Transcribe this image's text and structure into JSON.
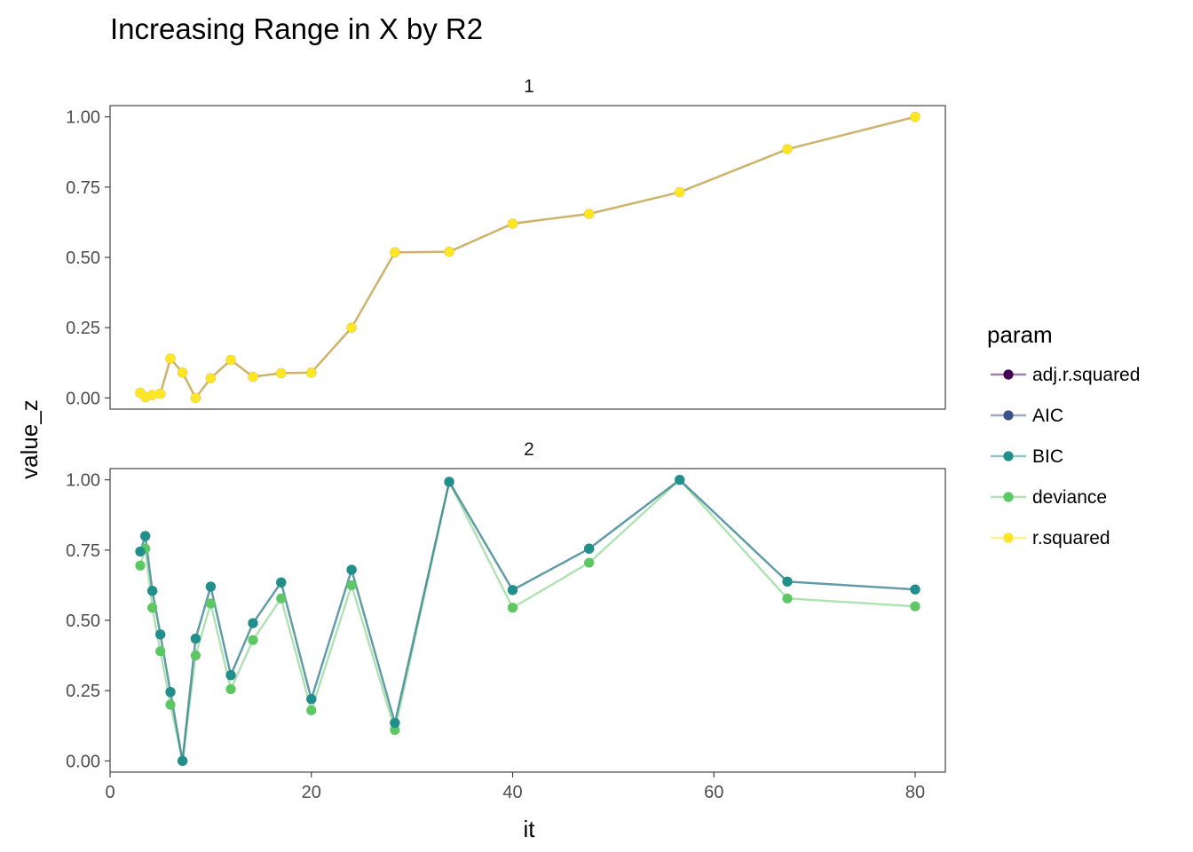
{
  "chart_data": {
    "type": "line",
    "title": "Increasing Range in X by R2",
    "xlabel": "it",
    "ylabel": "value_z",
    "xlim": [
      0,
      83
    ],
    "ylim": [
      -0.04,
      1.04
    ],
    "x_ticks": [
      "0",
      "20",
      "40",
      "60",
      "80"
    ],
    "y_ticks": [
      "0.00",
      "0.25",
      "0.50",
      "0.75",
      "1.00"
    ],
    "grid": false,
    "legend": {
      "title": "param",
      "placement": "right",
      "entries": [
        {
          "label": "adj.r.squared",
          "color": "#440154"
        },
        {
          "label": "AIC",
          "color": "#3b528b"
        },
        {
          "label": "BIC",
          "color": "#21908c"
        },
        {
          "label": "deviance",
          "color": "#5dc863"
        },
        {
          "label": "r.squared",
          "color": "#fde725"
        }
      ]
    },
    "panels": [
      {
        "label": "1",
        "series": [
          {
            "name": "adj.r.squared",
            "color": "#440154",
            "x": [
              3.0,
              3.5,
              4.2,
              5.0,
              6.0,
              7.2,
              8.5,
              10.0,
              12.0,
              14.2,
              17.0,
              20.0,
              24.0,
              28.3,
              33.7,
              40.0,
              47.6,
              56.6,
              67.3,
              80.0
            ],
            "y": [
              0.018,
              0.003,
              0.01,
              0.015,
              0.14,
              0.09,
              0.0,
              0.07,
              0.135,
              0.075,
              0.088,
              0.09,
              0.25,
              0.518,
              0.52,
              0.62,
              0.655,
              0.732,
              0.885,
              1.0
            ]
          },
          {
            "name": "r.squared",
            "color": "#fde725",
            "x": [
              3.0,
              3.5,
              4.2,
              5.0,
              6.0,
              7.2,
              8.5,
              10.0,
              12.0,
              14.2,
              17.0,
              20.0,
              24.0,
              28.3,
              33.7,
              40.0,
              47.6,
              56.6,
              67.3,
              80.0
            ],
            "y": [
              0.018,
              0.003,
              0.01,
              0.015,
              0.14,
              0.09,
              0.0,
              0.07,
              0.135,
              0.075,
              0.088,
              0.09,
              0.25,
              0.518,
              0.52,
              0.62,
              0.655,
              0.732,
              0.885,
              1.0
            ]
          }
        ]
      },
      {
        "label": "2",
        "series": [
          {
            "name": "deviance",
            "color": "#5dc863",
            "x": [
              3.0,
              3.5,
              4.2,
              5.0,
              6.0,
              7.2,
              8.5,
              10.0,
              12.0,
              14.2,
              17.0,
              20.0,
              24.0,
              28.3,
              33.7,
              40.0,
              47.6,
              56.6,
              67.3,
              80.0
            ],
            "y": [
              0.695,
              0.755,
              0.545,
              0.39,
              0.2,
              0.0,
              0.375,
              0.56,
              0.255,
              0.43,
              0.578,
              0.18,
              0.625,
              0.11,
              0.993,
              0.545,
              0.705,
              1.0,
              0.578,
              0.55
            ]
          },
          {
            "name": "AIC",
            "color": "#3b528b",
            "x": [
              3.0,
              3.5,
              4.2,
              5.0,
              6.0,
              7.2,
              8.5,
              10.0,
              12.0,
              14.2,
              17.0,
              20.0,
              24.0,
              28.3,
              33.7,
              40.0,
              47.6,
              56.6,
              67.3,
              80.0
            ],
            "y": [
              0.745,
              0.8,
              0.605,
              0.45,
              0.245,
              0.0,
              0.435,
              0.62,
              0.305,
              0.49,
              0.635,
              0.22,
              0.68,
              0.135,
              0.993,
              0.608,
              0.755,
              1.0,
              0.638,
              0.61
            ]
          },
          {
            "name": "BIC",
            "color": "#21908c",
            "x": [
              3.0,
              3.5,
              4.2,
              5.0,
              6.0,
              7.2,
              8.5,
              10.0,
              12.0,
              14.2,
              17.0,
              20.0,
              24.0,
              28.3,
              33.7,
              40.0,
              47.6,
              56.6,
              67.3,
              80.0
            ],
            "y": [
              0.745,
              0.8,
              0.605,
              0.45,
              0.245,
              0.0,
              0.435,
              0.62,
              0.305,
              0.49,
              0.635,
              0.22,
              0.68,
              0.135,
              0.993,
              0.608,
              0.755,
              1.0,
              0.638,
              0.61
            ]
          }
        ]
      }
    ]
  }
}
